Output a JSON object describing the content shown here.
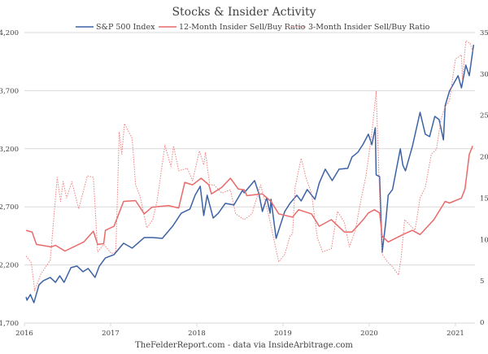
{
  "chart_data": {
    "type": "line",
    "title": "Stocks & Insider Activity",
    "footer": "TheFelderReport.com - data via InsideArbitrage.com",
    "x_ticks": [
      "2016",
      "2017",
      "2018",
      "2019",
      "2020",
      "2021"
    ],
    "xlim": [
      2016,
      2021.25
    ],
    "y_left": {
      "range": [
        1700,
        4200
      ],
      "ticks": [
        "1,700",
        "2,200",
        "2,700",
        "3,200",
        "3,700",
        "4,200"
      ]
    },
    "y_right": {
      "range": [
        0,
        35
      ],
      "ticks": [
        "0",
        "5",
        "10",
        "15",
        "20",
        "25",
        "30",
        "35"
      ]
    },
    "grid": true,
    "legend": "top",
    "series": [
      {
        "name": "S&P 500 Index",
        "axis": "left",
        "color": "#3c62a6",
        "style": "solid",
        "points": [
          [
            2016.02,
            1925
          ],
          [
            2016.03,
            1897
          ],
          [
            2016.07,
            1946
          ],
          [
            2016.11,
            1876
          ],
          [
            2016.17,
            2030
          ],
          [
            2016.22,
            2065
          ],
          [
            2016.3,
            2093
          ],
          [
            2016.36,
            2051
          ],
          [
            2016.41,
            2107
          ],
          [
            2016.46,
            2051
          ],
          [
            2016.54,
            2177
          ],
          [
            2016.61,
            2191
          ],
          [
            2016.68,
            2142
          ],
          [
            2016.74,
            2170
          ],
          [
            2016.82,
            2093
          ],
          [
            2016.87,
            2191
          ],
          [
            2016.94,
            2261
          ],
          [
            2017.04,
            2289
          ],
          [
            2017.15,
            2387
          ],
          [
            2017.25,
            2345
          ],
          [
            2017.39,
            2436
          ],
          [
            2017.48,
            2436
          ],
          [
            2017.6,
            2429
          ],
          [
            2017.72,
            2534
          ],
          [
            2017.82,
            2646
          ],
          [
            2017.92,
            2681
          ],
          [
            2017.98,
            2800
          ],
          [
            2018.04,
            2877
          ],
          [
            2018.08,
            2625
          ],
          [
            2018.12,
            2800
          ],
          [
            2018.19,
            2604
          ],
          [
            2018.25,
            2646
          ],
          [
            2018.33,
            2730
          ],
          [
            2018.43,
            2716
          ],
          [
            2018.53,
            2842
          ],
          [
            2018.55,
            2821
          ],
          [
            2018.67,
            2926
          ],
          [
            2018.72,
            2814
          ],
          [
            2018.76,
            2660
          ],
          [
            2018.81,
            2779
          ],
          [
            2018.85,
            2646
          ],
          [
            2018.86,
            2765
          ],
          [
            2018.92,
            2429
          ],
          [
            2019.02,
            2660
          ],
          [
            2019.08,
            2730
          ],
          [
            2019.16,
            2800
          ],
          [
            2019.21,
            2751
          ],
          [
            2019.28,
            2849
          ],
          [
            2019.37,
            2765
          ],
          [
            2019.42,
            2905
          ],
          [
            2019.49,
            3024
          ],
          [
            2019.57,
            2926
          ],
          [
            2019.65,
            3024
          ],
          [
            2019.75,
            3031
          ],
          [
            2019.8,
            3129
          ],
          [
            2019.87,
            3171
          ],
          [
            2019.93,
            3241
          ],
          [
            2019.99,
            3325
          ],
          [
            2020.03,
            3234
          ],
          [
            2020.07,
            3381
          ],
          [
            2020.08,
            2975
          ],
          [
            2020.12,
            2961
          ],
          [
            2020.15,
            2310
          ],
          [
            2020.19,
            2555
          ],
          [
            2020.22,
            2800
          ],
          [
            2020.27,
            2849
          ],
          [
            2020.36,
            3199
          ],
          [
            2020.39,
            3059
          ],
          [
            2020.42,
            3010
          ],
          [
            2020.5,
            3220
          ],
          [
            2020.59,
            3514
          ],
          [
            2020.65,
            3325
          ],
          [
            2020.7,
            3304
          ],
          [
            2020.76,
            3479
          ],
          [
            2020.81,
            3451
          ],
          [
            2020.86,
            3276
          ],
          [
            2020.88,
            3570
          ],
          [
            2020.93,
            3696
          ],
          [
            2021.03,
            3829
          ],
          [
            2021.07,
            3724
          ],
          [
            2021.12,
            3920
          ],
          [
            2021.16,
            3829
          ],
          [
            2021.21,
            4095
          ]
        ]
      },
      {
        "name": "12-Month Insider Sell/Buy Ratio",
        "axis": "right",
        "color": "#e86a6a",
        "style": "solid",
        "points": [
          [
            2016.02,
            11.1
          ],
          [
            2016.09,
            10.9
          ],
          [
            2016.14,
            9.4
          ],
          [
            2016.31,
            9.1
          ],
          [
            2016.36,
            9.3
          ],
          [
            2016.47,
            8.6
          ],
          [
            2016.69,
            9.7
          ],
          [
            2016.8,
            11.0
          ],
          [
            2016.85,
            9.4
          ],
          [
            2016.92,
            9.5
          ],
          [
            2016.94,
            11.1
          ],
          [
            2017.04,
            11.6
          ],
          [
            2017.08,
            12.7
          ],
          [
            2017.15,
            14.6
          ],
          [
            2017.29,
            14.7
          ],
          [
            2017.39,
            13.1
          ],
          [
            2017.48,
            13.9
          ],
          [
            2017.67,
            14.1
          ],
          [
            2017.79,
            13.8
          ],
          [
            2017.86,
            16.9
          ],
          [
            2017.95,
            16.6
          ],
          [
            2018.05,
            17.4
          ],
          [
            2018.14,
            16.6
          ],
          [
            2018.17,
            15.5
          ],
          [
            2018.29,
            16.3
          ],
          [
            2018.39,
            17.4
          ],
          [
            2018.48,
            16.1
          ],
          [
            2018.55,
            16.0
          ],
          [
            2018.58,
            15.3
          ],
          [
            2018.76,
            15.5
          ],
          [
            2018.86,
            14.6
          ],
          [
            2018.95,
            13.1
          ],
          [
            2019.11,
            12.7
          ],
          [
            2019.18,
            13.6
          ],
          [
            2019.33,
            13.1
          ],
          [
            2019.42,
            11.6
          ],
          [
            2019.56,
            12.4
          ],
          [
            2019.71,
            10.9
          ],
          [
            2019.8,
            10.9
          ],
          [
            2019.93,
            12.4
          ],
          [
            2019.99,
            13.2
          ],
          [
            2020.06,
            13.6
          ],
          [
            2020.12,
            13.2
          ],
          [
            2020.15,
            10.4
          ],
          [
            2020.22,
            9.7
          ],
          [
            2020.41,
            10.7
          ],
          [
            2020.5,
            11.1
          ],
          [
            2020.59,
            10.6
          ],
          [
            2020.75,
            12.4
          ],
          [
            2020.88,
            14.6
          ],
          [
            2020.93,
            14.4
          ],
          [
            2021.07,
            15.0
          ],
          [
            2021.11,
            16.1
          ],
          [
            2021.16,
            20.3
          ],
          [
            2021.2,
            21.3
          ]
        ]
      },
      {
        "name": "3-Month Insider Sell/Buy Ratio",
        "axis": "right",
        "color": "#ef7f7f",
        "style": "dotted",
        "points": [
          [
            2016.02,
            8.0
          ],
          [
            2016.08,
            7.2
          ],
          [
            2016.12,
            3.8
          ],
          [
            2016.19,
            5.8
          ],
          [
            2016.3,
            7.5
          ],
          [
            2016.38,
            17.5
          ],
          [
            2016.42,
            14.6
          ],
          [
            2016.45,
            17.0
          ],
          [
            2016.49,
            15.0
          ],
          [
            2016.55,
            17.0
          ],
          [
            2016.63,
            13.7
          ],
          [
            2016.73,
            17.7
          ],
          [
            2016.8,
            17.5
          ],
          [
            2016.85,
            8.5
          ],
          [
            2016.92,
            9.4
          ],
          [
            2017.01,
            8.3
          ],
          [
            2017.06,
            8.5
          ],
          [
            2017.1,
            23.0
          ],
          [
            2017.13,
            20.3
          ],
          [
            2017.16,
            24.0
          ],
          [
            2017.25,
            22.2
          ],
          [
            2017.29,
            16.6
          ],
          [
            2017.34,
            15.3
          ],
          [
            2017.42,
            11.4
          ],
          [
            2017.49,
            12.4
          ],
          [
            2017.54,
            14.7
          ],
          [
            2017.63,
            21.4
          ],
          [
            2017.7,
            18.8
          ],
          [
            2017.73,
            21.3
          ],
          [
            2017.79,
            18.3
          ],
          [
            2017.89,
            18.6
          ],
          [
            2017.95,
            17.1
          ],
          [
            2018.03,
            20.7
          ],
          [
            2018.08,
            19.0
          ],
          [
            2018.1,
            20.5
          ],
          [
            2018.15,
            16.6
          ],
          [
            2018.2,
            16.6
          ],
          [
            2018.29,
            15.6
          ],
          [
            2018.39,
            16.0
          ],
          [
            2018.45,
            13.1
          ],
          [
            2018.55,
            12.4
          ],
          [
            2018.64,
            13.1
          ],
          [
            2018.74,
            16.6
          ],
          [
            2018.83,
            13.1
          ],
          [
            2018.95,
            7.3
          ],
          [
            2019.02,
            8.2
          ],
          [
            2019.08,
            10.4
          ],
          [
            2019.11,
            10.7
          ],
          [
            2019.14,
            16.3
          ],
          [
            2019.21,
            19.8
          ],
          [
            2019.27,
            17.3
          ],
          [
            2019.33,
            15.6
          ],
          [
            2019.4,
            10.1
          ],
          [
            2019.46,
            8.5
          ],
          [
            2019.56,
            8.9
          ],
          [
            2019.63,
            13.4
          ],
          [
            2019.71,
            12.1
          ],
          [
            2019.77,
            9.1
          ],
          [
            2019.84,
            11.1
          ],
          [
            2019.9,
            14.6
          ],
          [
            2019.96,
            17.6
          ],
          [
            2020.03,
            22.9
          ],
          [
            2020.08,
            27.9
          ],
          [
            2020.12,
            15.3
          ],
          [
            2020.15,
            8.2
          ],
          [
            2020.22,
            7.2
          ],
          [
            2020.27,
            6.7
          ],
          [
            2020.34,
            5.7
          ],
          [
            2020.37,
            7.8
          ],
          [
            2020.41,
            12.4
          ],
          [
            2020.53,
            11.1
          ],
          [
            2020.59,
            15.0
          ],
          [
            2020.65,
            16.3
          ],
          [
            2020.72,
            20.3
          ],
          [
            2020.78,
            20.9
          ],
          [
            2020.83,
            24.5
          ],
          [
            2020.88,
            26.0
          ],
          [
            2020.93,
            26.8
          ],
          [
            2021.0,
            31.8
          ],
          [
            2021.07,
            32.3
          ],
          [
            2021.08,
            29.3
          ],
          [
            2021.12,
            34.0
          ],
          [
            2021.17,
            33.7
          ],
          [
            2021.2,
            32.7
          ]
        ]
      }
    ]
  }
}
